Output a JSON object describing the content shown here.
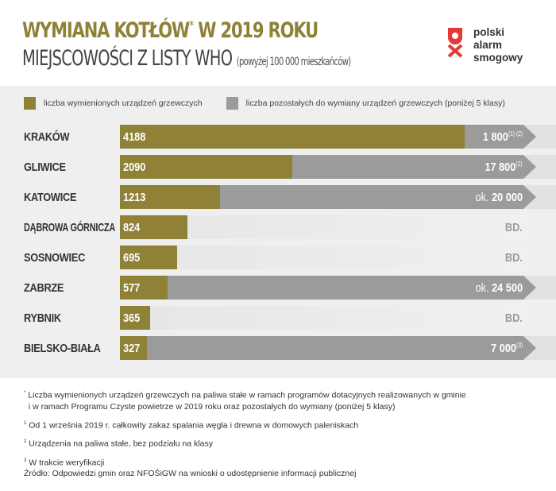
{
  "title": "WYMIANA KOTŁÓW",
  "title_star": "*",
  "title_rest": " W 2019 ROKU",
  "subtitle": "MIEJSCOWOŚCI Z LISTY WHO",
  "subtitle_note": "(powyżej 100 000 mieszkańców)",
  "logo": {
    "line1": "polski",
    "line2": "alarm",
    "line3": "smogowy",
    "color": "#e53935"
  },
  "chart_data": {
    "type": "bar",
    "orientation": "horizontal",
    "colors": {
      "replaced": "#8f8237",
      "remaining": "#9b9b9b"
    },
    "legend": [
      {
        "name": "liczba wymienionych urządzeń grzewczych",
        "color": "#8f8237"
      },
      {
        "name": "liczba pozostałych do wymiany urządzeń grzewczych (poniżej 5 klasy)",
        "color": "#9b9b9b"
      }
    ],
    "categories": [
      "KRAKÓW",
      "GLIWICE",
      "KATOWICE",
      "DĄBROWA GÓRNICZA",
      "SOSNOWIEC",
      "ZABRZE",
      "RYBNIK",
      "BIELSKO-BIAŁA"
    ],
    "replaced": [
      4188,
      2090,
      1213,
      824,
      695,
      577,
      365,
      327
    ],
    "remaining": [
      {
        "prefix": "",
        "value": "1 800",
        "note": "(1) (2)",
        "bd": false
      },
      {
        "prefix": "",
        "value": "17 800",
        "note": "(2)",
        "bd": false
      },
      {
        "prefix": "ok. ",
        "value": "20 000",
        "note": "",
        "bd": false
      },
      {
        "prefix": "",
        "value": "BD.",
        "note": "",
        "bd": true
      },
      {
        "prefix": "",
        "value": "BD.",
        "note": "",
        "bd": true
      },
      {
        "prefix": "ok. ",
        "value": "24 500",
        "note": "",
        "bd": false
      },
      {
        "prefix": "",
        "value": "BD.",
        "note": "",
        "bd": true
      },
      {
        "prefix": "",
        "value": "7 000",
        "note": "(3)",
        "bd": false
      }
    ]
  },
  "notes": {
    "n0_mark": "*",
    "n0": "Liczba wymienionych urządzeń grzewczych na paliwa stałe w ramach programów dotacyjnych realizowanych w gminie",
    "n0b": "i w ramach Programu Czyste powietrze w 2019 roku oraz pozostałych do wymiany (poniżej 5 klasy)",
    "n1_mark": "1",
    "n1": "Od 1 września 2019 r. całkowity zakaz spalania węgla i drewna w domowych paleniskach",
    "n2_mark": "2",
    "n2": "Urządzenia na paliwa stałe, bez podziału na klasy",
    "n3_mark": "3",
    "n3": "W trakcie weryfikacji",
    "source": "Źródło: Odpowiedzi gmin oraz NFOŚiGW na wnioski o udostępnienie informacji publicznej"
  }
}
